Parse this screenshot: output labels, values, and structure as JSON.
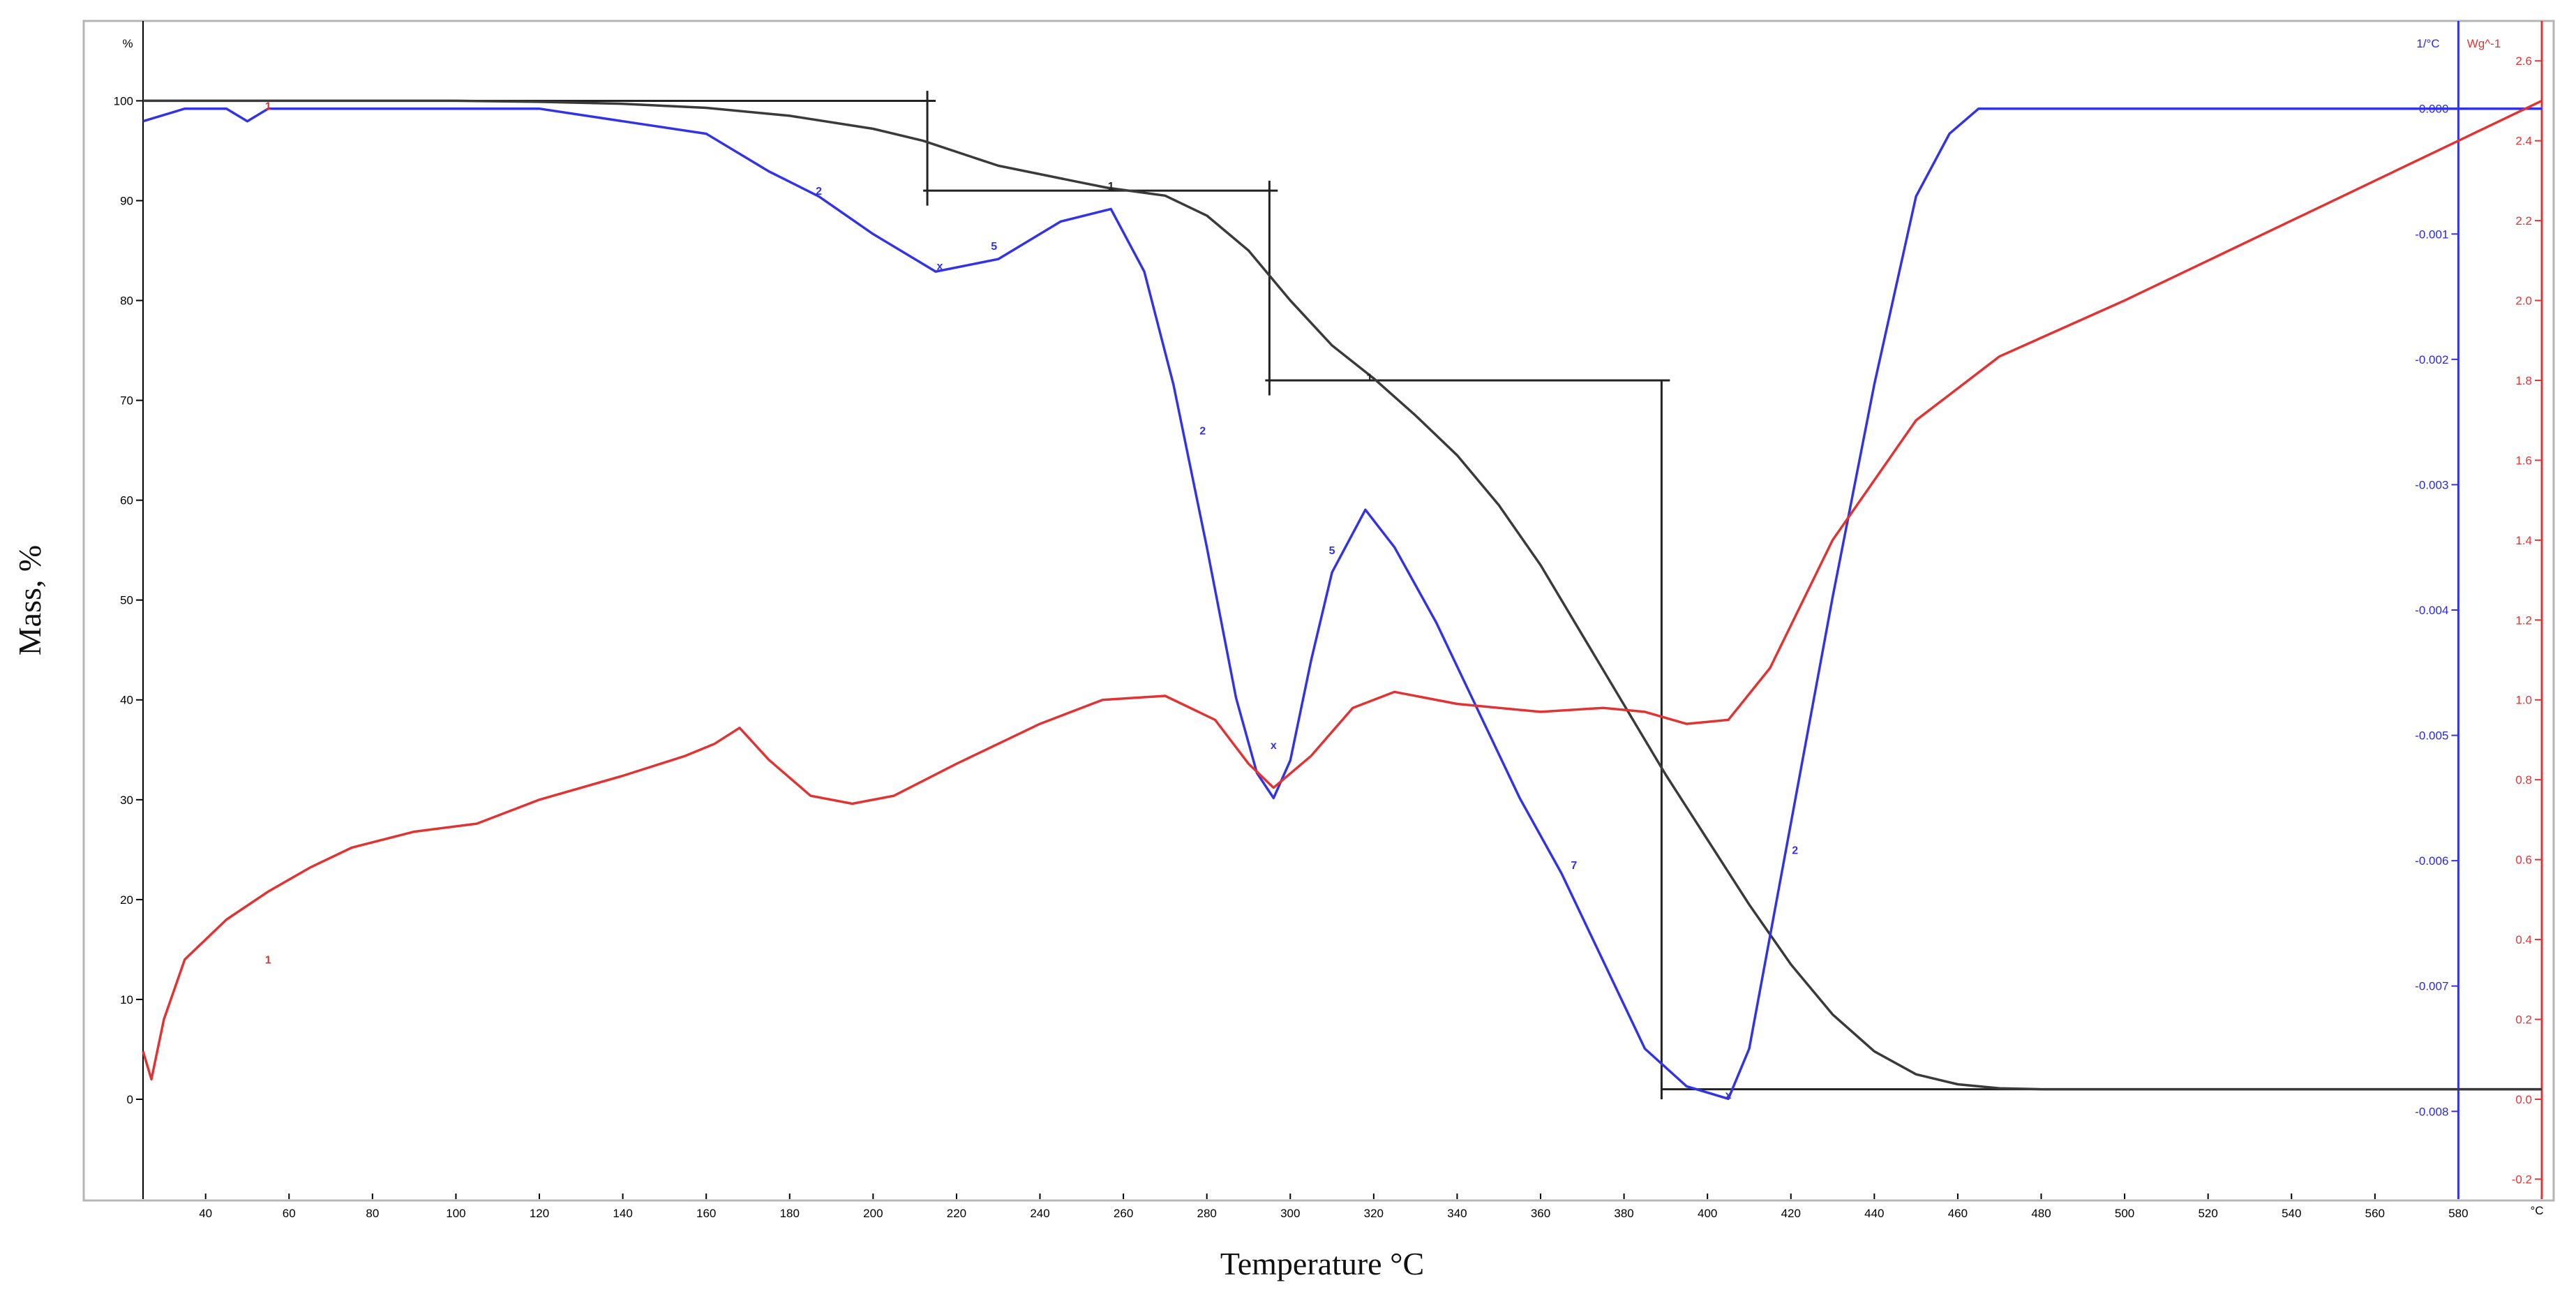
{
  "chart_data": {
    "type": "line",
    "x_axis": {
      "label": "Temperature °C",
      "unit_label": "°C",
      "range": [
        25,
        600
      ],
      "ticks": [
        40,
        60,
        80,
        100,
        120,
        140,
        160,
        180,
        200,
        220,
        240,
        260,
        280,
        300,
        320,
        340,
        360,
        380,
        400,
        420,
        440,
        460,
        480,
        500,
        520,
        540,
        560,
        580
      ]
    },
    "y_axis_left": {
      "label": "Mass, %",
      "unit_label": "%",
      "range": [
        -10,
        108
      ],
      "ticks": [
        0,
        10,
        20,
        30,
        40,
        50,
        60,
        70,
        80,
        90,
        100
      ]
    },
    "y_axis_dtg": {
      "unit_label": "1/°C",
      "color": "#3333e6",
      "range": [
        -0.0087,
        0.0007
      ],
      "ticks": [
        "0.000",
        "-0.001",
        "-0.002",
        "-0.003",
        "-0.004",
        "-0.005",
        "-0.006",
        "-0.007",
        "-0.008"
      ]
    },
    "y_axis_dsc": {
      "unit_label": "Wg^-1",
      "color": "#e03434",
      "range": [
        -0.25,
        2.7
      ],
      "ticks": [
        "2.6",
        "2.4",
        "2.2",
        "2.0",
        "1.8",
        "1.6",
        "1.4",
        "1.2",
        "1.0",
        "0.8",
        "0.6",
        "0.4",
        "0.2",
        "0.0",
        "-0.2"
      ]
    },
    "series": [
      {
        "axis": "left",
        "color": "#3a3a3a",
        "x": [
          25,
          60,
          100,
          120,
          140,
          160,
          180,
          200,
          212,
          230,
          250,
          256,
          270,
          280,
          290,
          300,
          310,
          320,
          330,
          340,
          350,
          360,
          370,
          380,
          390,
          400,
          410,
          420,
          430,
          440,
          450,
          460,
          470,
          480,
          500,
          550,
          600
        ],
        "y": [
          100,
          100,
          100,
          99.9,
          99.7,
          99.3,
          98.5,
          97.2,
          96,
          93.5,
          91.8,
          91.3,
          90.5,
          88.5,
          85,
          80,
          75.5,
          72.2,
          68.5,
          64.5,
          59.5,
          53.5,
          46.5,
          39.5,
          32.5,
          26,
          19.5,
          13.5,
          8.5,
          4.8,
          2.5,
          1.5,
          1.1,
          1,
          1,
          1,
          1
        ]
      },
      {
        "axis": "dtg",
        "color": "#3333e6",
        "x": [
          25,
          35,
          45,
          50,
          55,
          80,
          120,
          140,
          160,
          175,
          187,
          200,
          215,
          230,
          245,
          257,
          265,
          272,
          280,
          287,
          292,
          296,
          300,
          305,
          310,
          318,
          325,
          335,
          345,
          355,
          365,
          375,
          385,
          395,
          405,
          410,
          415,
          420,
          430,
          440,
          450,
          458,
          465,
          480,
          500,
          540,
          600
        ],
        "y": [
          -0.0001,
          0,
          0,
          -0.0001,
          0,
          0,
          0,
          -0.0001,
          -0.0002,
          -0.0005,
          -0.0007,
          -0.001,
          -0.0013,
          -0.0012,
          -0.0009,
          -0.0008,
          -0.0013,
          -0.0022,
          -0.0035,
          -0.0047,
          -0.0053,
          -0.0055,
          -0.0052,
          -0.0044,
          -0.0037,
          -0.0032,
          -0.0035,
          -0.0041,
          -0.0048,
          -0.0055,
          -0.0061,
          -0.0068,
          -0.0075,
          -0.0078,
          -0.0079,
          -0.0075,
          -0.0066,
          -0.0057,
          -0.0039,
          -0.0022,
          -0.0007,
          -0.0002,
          0,
          0,
          0,
          0,
          0
        ]
      },
      {
        "axis": "dsc",
        "color": "#e03434",
        "x": [
          25,
          27,
          30,
          35,
          45,
          55,
          65,
          75,
          90,
          105,
          120,
          140,
          155,
          162,
          168,
          175,
          185,
          195,
          205,
          220,
          240,
          255,
          270,
          282,
          290,
          296,
          305,
          315,
          325,
          340,
          360,
          375,
          385,
          395,
          405,
          415,
          430,
          450,
          470,
          500,
          540,
          580,
          600
        ],
        "y": [
          0.12,
          0.05,
          0.2,
          0.35,
          0.45,
          0.52,
          0.58,
          0.63,
          0.67,
          0.69,
          0.75,
          0.81,
          0.86,
          0.89,
          0.93,
          0.85,
          0.76,
          0.74,
          0.76,
          0.84,
          0.94,
          1.0,
          1.01,
          0.95,
          0.84,
          0.78,
          0.86,
          0.98,
          1.02,
          0.99,
          0.97,
          0.98,
          0.97,
          0.94,
          0.95,
          1.08,
          1.4,
          1.7,
          1.86,
          2.0,
          2.2,
          2.4,
          2.5
        ]
      }
    ],
    "step_lines": [
      {
        "x_start": 25,
        "x_end": 215,
        "y": 100
      },
      {
        "x_start": 212,
        "x_end": 297,
        "y": 91
      },
      {
        "x_start": 294,
        "x_end": 391,
        "y": 72
      },
      {
        "x_start": 389,
        "x_end": 600,
        "y": 1
      }
    ],
    "step_verticals": [
      {
        "x": 213,
        "y_top": 101,
        "y_bottom": 89.5
      },
      {
        "x": 295,
        "y_top": 92,
        "y_bottom": 70.5
      },
      {
        "x": 389,
        "y_top": 72,
        "y_bottom": 0
      }
    ],
    "vertical_lines": [
      {
        "x": 580,
        "color": "#3333e6"
      },
      {
        "x": 600,
        "color": "#e03434"
      }
    ],
    "markers": [
      {
        "x": 187,
        "y": 91,
        "label": "2",
        "color": "#3333e6"
      },
      {
        "x": 216,
        "y": 83.5,
        "label": "x",
        "color": "#3333e6"
      },
      {
        "x": 229,
        "y": 85.5,
        "label": "5",
        "color": "#3333e6"
      },
      {
        "x": 279,
        "y": 67,
        "label": "2",
        "color": "#3333e6"
      },
      {
        "x": 296,
        "y": 35.5,
        "label": "x",
        "color": "#3333e6"
      },
      {
        "x": 310,
        "y": 55,
        "label": "5",
        "color": "#3333e6"
      },
      {
        "x": 368,
        "y": 23.5,
        "label": "7",
        "color": "#3333e6"
      },
      {
        "x": 405,
        "y": 0.5,
        "label": "x",
        "color": "#3333e6"
      },
      {
        "x": 421,
        "y": 25,
        "label": "2",
        "color": "#3333e6"
      },
      {
        "x": 55,
        "y": 14,
        "label": "1",
        "color": "#e03434"
      },
      {
        "x": 55,
        "y": 99.5,
        "label": "1",
        "color": "#e03434"
      },
      {
        "x": 257,
        "y": 91.5,
        "label": "1",
        "color": "#222222"
      },
      {
        "x": 319,
        "y": 72.3,
        "label": "1",
        "color": "#222222"
      }
    ]
  }
}
